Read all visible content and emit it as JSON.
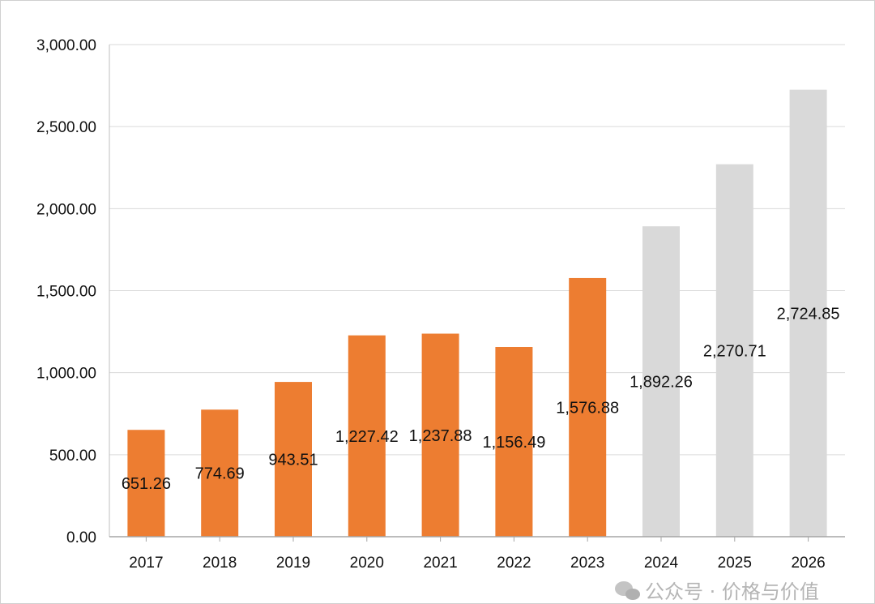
{
  "chart_data": {
    "type": "bar",
    "title": "",
    "xlabel": "",
    "ylabel": "",
    "categories": [
      "2017",
      "2018",
      "2019",
      "2020",
      "2021",
      "2022",
      "2023",
      "2024",
      "2025",
      "2026"
    ],
    "values": [
      651.26,
      774.69,
      943.51,
      1227.42,
      1237.88,
      1156.49,
      1576.88,
      1892.26,
      2270.71,
      2724.85
    ],
    "data_labels": [
      "651.26",
      "774.69",
      "943.51",
      "1,227.42",
      "1,237.88",
      "1,156.49",
      "1,576.88",
      "1,892.26",
      "2,270.71",
      "2,724.85"
    ],
    "bar_kind": [
      "actual",
      "actual",
      "actual",
      "actual",
      "actual",
      "actual",
      "actual",
      "forecast",
      "forecast",
      "forecast"
    ],
    "colors": {
      "actual": "#ED7D31",
      "forecast": "#D9D9D9"
    },
    "ylim": [
      0,
      3000
    ],
    "yticks": [
      0,
      500,
      1000,
      1500,
      2000,
      2500,
      3000
    ],
    "ytick_labels": [
      "0.00",
      "500.00",
      "1,000.00",
      "1,500.00",
      "2,000.00",
      "2,500.00",
      "3,000.00"
    ],
    "grid": true,
    "legend": "none"
  },
  "watermark": {
    "text": "公众号 · 价格与价值",
    "icon": "wechat-icon"
  }
}
